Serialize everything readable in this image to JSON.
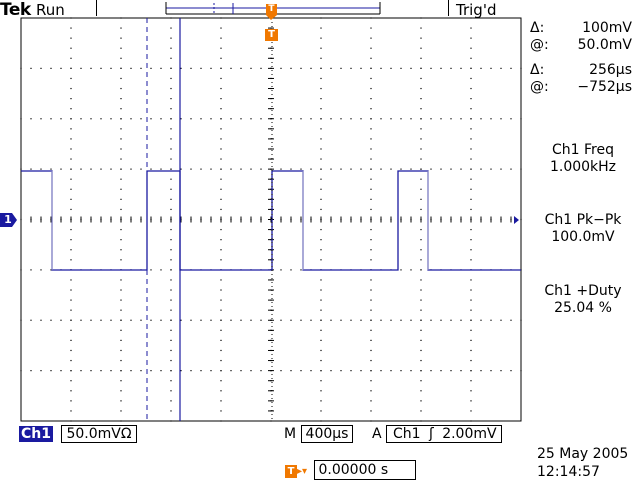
{
  "header": {
    "brand": "Tek",
    "acq_state": "Run",
    "trigger_status": "Trig'd"
  },
  "cursors": {
    "delta_v_symbol": "Δ:",
    "delta_v": "100mV",
    "at_v_symbol": "@:",
    "at_v": "50.0mV",
    "delta_t_symbol": "Δ:",
    "delta_t": "256µs",
    "at_t_symbol": "@:",
    "at_t": "−752µs"
  },
  "measurements": [
    {
      "label": "Ch1 Freq",
      "value": "1.000kHz"
    },
    {
      "label": "Ch1 Pk−Pk",
      "value": "100.0mV"
    },
    {
      "label": "Ch1 +Duty",
      "value": "25.04 %"
    }
  ],
  "markers": {
    "trigger_marker": "T",
    "channel_marker": "1"
  },
  "bottom_bar": {
    "channel": "Ch1",
    "volts_per_div": "50.0mVΩ",
    "timebase_prefix": "M",
    "timebase": "400µs",
    "trigger_prefix": "A",
    "trigger_source": "Ch1",
    "trigger_slope": "ʃ",
    "trigger_level": "2.00mV"
  },
  "trigger_position": {
    "marker": "T",
    "arrow": "▸▾",
    "value": "0.00000 s"
  },
  "datetime": {
    "date": "25 May 2005",
    "time": "12:14:57"
  },
  "colors": {
    "trace": "#1a1aa0",
    "trigger": "#f07800",
    "grid": "#000000"
  }
}
